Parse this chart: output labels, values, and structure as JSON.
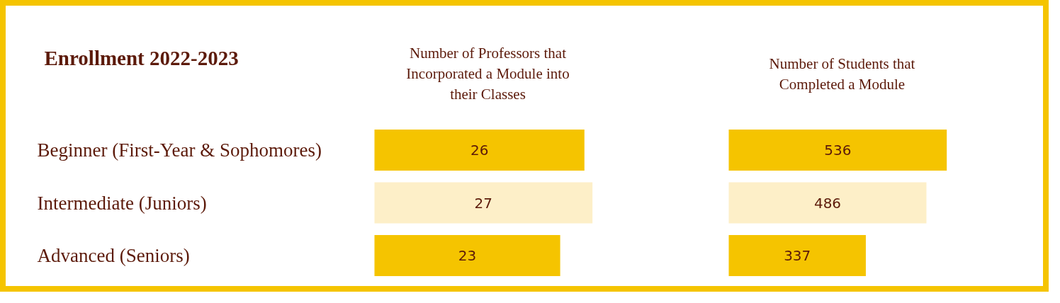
{
  "chart_data": [
    {
      "type": "bar",
      "orientation": "horizontal",
      "title": "Enrollment 2022-2023",
      "xlabel": "Number of Professors that Incorporated a Module into their Classes",
      "categories": [
        "Beginner (First-Year & Sophomores)",
        "Intermediate (Juniors)",
        "Advanced (Seniors)"
      ],
      "values": [
        26,
        27,
        23
      ],
      "colors": [
        "#f5c400",
        "#fdefc8",
        "#f5c400"
      ],
      "data_labels": true,
      "tick_labels": "y"
    },
    {
      "type": "bar",
      "orientation": "horizontal",
      "xlabel": "Number of Students that Completed a Module",
      "categories": [
        null,
        null,
        null
      ],
      "values": [
        536,
        486,
        337
      ],
      "colors": [
        "#f5c400",
        "#fdefc8",
        "#f5c400"
      ],
      "data_labels": true,
      "tick_labels": false
    }
  ]
}
